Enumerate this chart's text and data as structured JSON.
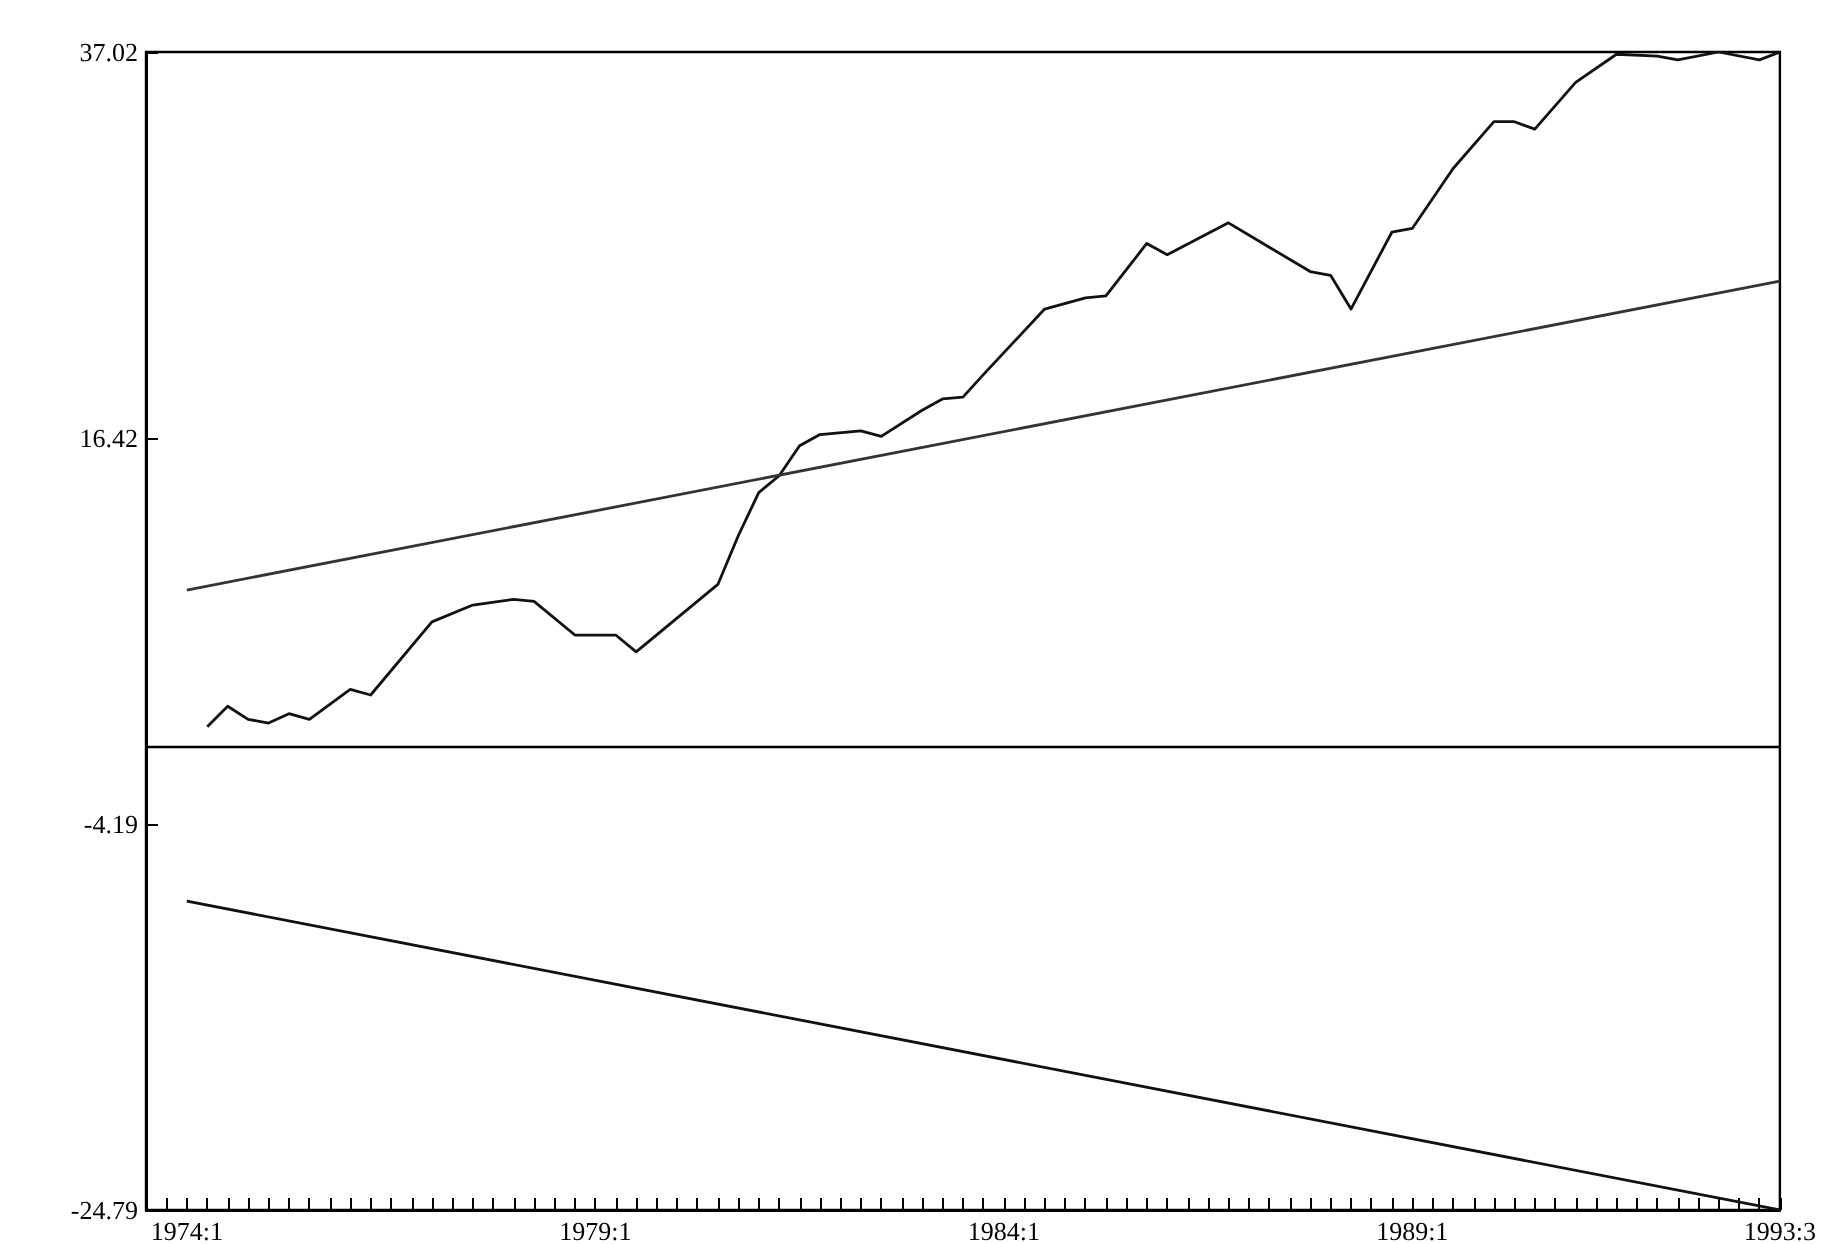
{
  "chart_data": {
    "type": "line",
    "ylim": [
      -24.79,
      37.02
    ],
    "yticks": [
      -24.79,
      -4.19,
      16.42,
      37.02
    ],
    "categories": [
      null,
      null,
      "1974:1",
      null,
      null,
      null,
      null,
      null,
      null,
      null,
      null,
      null,
      null,
      null,
      null,
      null,
      null,
      null,
      null,
      null,
      null,
      null,
      "1979:1",
      null,
      null,
      null,
      null,
      null,
      null,
      null,
      null,
      null,
      null,
      null,
      null,
      null,
      null,
      null,
      null,
      null,
      null,
      null,
      "1984:1",
      null,
      null,
      null,
      null,
      null,
      null,
      null,
      null,
      null,
      null,
      null,
      null,
      null,
      null,
      null,
      null,
      null,
      null,
      null,
      "1989:1",
      null,
      null,
      null,
      null,
      null,
      null,
      null,
      null,
      null,
      null,
      null,
      null,
      null,
      null,
      null,
      null,
      null,
      "1993:3"
    ],
    "grid": false,
    "marker": "none",
    "line_style": "solid",
    "ref_lines": [
      {
        "axis": "y",
        "value": 0,
        "color": "#000000"
      }
    ],
    "series": [
      {
        "color": "#111111",
        "values": [
          null,
          null,
          null,
          1.0,
          2.1,
          1.4,
          1.2,
          1.7,
          1.4,
          null,
          3.0,
          2.7,
          null,
          null,
          6.6,
          null,
          7.5,
          null,
          7.8,
          7.7,
          null,
          5.9,
          null,
          5.9,
          5.0,
          null,
          6.8,
          null,
          8.6,
          11.2,
          13.5,
          14.4,
          16.0,
          16.6,
          null,
          16.8,
          16.5,
          null,
          17.9,
          18.5,
          18.6,
          19.8,
          null,
          null,
          23.3,
          null,
          23.9,
          24.0,
          null,
          26.8,
          26.2,
          null,
          null,
          27.9,
          null,
          26.6,
          null,
          25.3,
          25.1,
          23.3,
          null,
          27.4,
          27.6,
          null,
          30.8,
          null,
          33.3,
          33.3,
          32.9,
          null,
          35.4,
          null,
          36.9,
          null,
          36.8,
          36.6,
          null,
          37.02,
          null,
          36.6,
          37.02
        ]
      },
      {
        "color": "#333333",
        "values": [
          null,
          null,
          8.3,
          null,
          null,
          null,
          null,
          null,
          null,
          null,
          null,
          null,
          null,
          null,
          null,
          null,
          null,
          null,
          null,
          null,
          null,
          null,
          null,
          null,
          null,
          null,
          null,
          null,
          null,
          null,
          null,
          null,
          null,
          null,
          null,
          null,
          null,
          null,
          null,
          null,
          null,
          null,
          null,
          null,
          null,
          null,
          null,
          null,
          null,
          null,
          null,
          null,
          null,
          null,
          null,
          null,
          null,
          null,
          null,
          null,
          null,
          null,
          null,
          null,
          null,
          null,
          null,
          null,
          null,
          null,
          null,
          null,
          null,
          null,
          null,
          null,
          null,
          null,
          null,
          null,
          24.79
        ]
      },
      {
        "color": "#111111",
        "values": [
          null,
          null,
          -8.3,
          null,
          null,
          null,
          null,
          null,
          null,
          null,
          null,
          null,
          null,
          null,
          null,
          null,
          null,
          null,
          null,
          null,
          null,
          null,
          null,
          null,
          null,
          null,
          null,
          null,
          null,
          null,
          null,
          null,
          null,
          null,
          null,
          null,
          null,
          null,
          null,
          null,
          null,
          null,
          null,
          null,
          null,
          null,
          null,
          null,
          null,
          null,
          null,
          null,
          null,
          null,
          null,
          null,
          null,
          null,
          null,
          null,
          null,
          null,
          null,
          null,
          null,
          null,
          null,
          null,
          null,
          null,
          null,
          null,
          null,
          null,
          null,
          null,
          null,
          null,
          null,
          null,
          -24.79
        ]
      }
    ]
  }
}
